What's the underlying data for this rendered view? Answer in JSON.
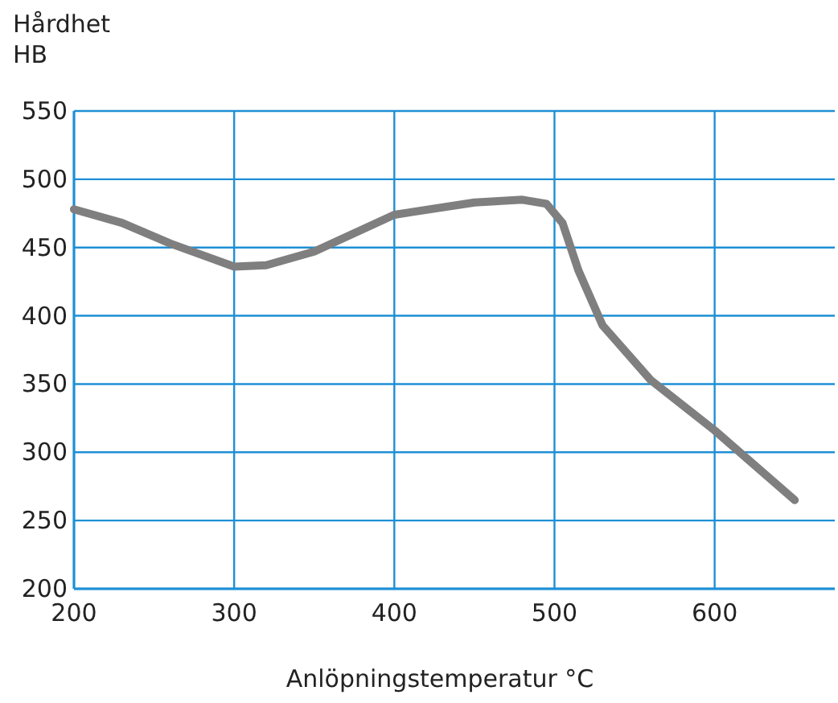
{
  "chart_data": {
    "type": "line",
    "ylabel": "Hårdhet\nHB",
    "xlabel": "Anlöpningstemperatur °C",
    "xlim": [
      200,
      675
    ],
    "ylim": [
      200,
      550
    ],
    "xticks": [
      200,
      300,
      400,
      500,
      600
    ],
    "yticks": [
      200,
      250,
      300,
      350,
      400,
      450,
      500,
      550
    ],
    "grid": true,
    "series": [
      {
        "color": "#7f7f7f",
        "x": [
          200,
          230,
          260,
          300,
          320,
          350,
          400,
          450,
          480,
          495,
          505,
          515,
          530,
          560,
          600,
          650
        ],
        "values": [
          478,
          468,
          453,
          436,
          437,
          447,
          474,
          483,
          485,
          482,
          468,
          433,
          393,
          353,
          316,
          265
        ]
      }
    ]
  }
}
